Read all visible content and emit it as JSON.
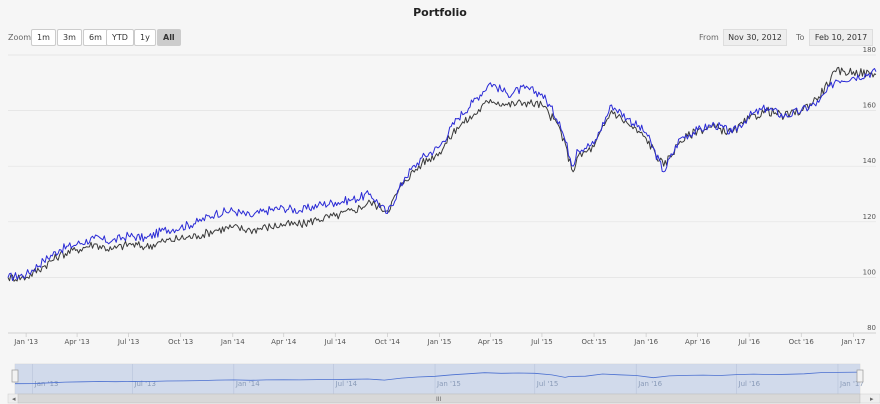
{
  "chart_data": {
    "type": "line",
    "title": "Portfolio",
    "ylim": [
      80,
      180
    ],
    "y_ticks": [
      80,
      100,
      120,
      140,
      160,
      180
    ],
    "x_range": [
      "2012-11-30",
      "2017-02-10"
    ],
    "x_tick_labels": [
      "Jan '13",
      "Apr '13",
      "Jul '13",
      "Oct '13",
      "Jan '14",
      "Apr '14",
      "Jul '14",
      "Oct '14",
      "Jan '15",
      "Apr '15",
      "Jul '15",
      "Oct '15",
      "Jan '16",
      "Apr '16",
      "Jul '16",
      "Oct '16",
      "Jan '17"
    ],
    "x_tick_dates": [
      "2013-01-01",
      "2013-04-01",
      "2013-07-01",
      "2013-10-01",
      "2014-01-01",
      "2014-04-01",
      "2014-07-01",
      "2014-10-01",
      "2015-01-01",
      "2015-04-01",
      "2015-07-01",
      "2015-10-01",
      "2016-01-01",
      "2016-04-01",
      "2016-07-01",
      "2016-10-01",
      "2017-01-01"
    ],
    "navigator_labels": [
      "Jan '13",
      "Jul '13",
      "Jan '14",
      "Jul '14",
      "Jan '15",
      "Jul '15",
      "Jan '16",
      "Jul '16",
      "Jan '17"
    ],
    "navigator_dates": [
      "2013-01-01",
      "2013-07-01",
      "2014-01-01",
      "2014-07-01",
      "2015-01-01",
      "2015-07-01",
      "2016-01-01",
      "2016-07-01",
      "2017-01-01"
    ],
    "series": [
      {
        "color": "#2b2bd6",
        "points": [
          [
            "2012-11-30",
            100
          ],
          [
            "2013-01-01",
            101
          ],
          [
            "2013-02-01",
            106
          ],
          [
            "2013-03-01",
            110
          ],
          [
            "2013-04-01",
            112
          ],
          [
            "2013-05-01",
            114
          ],
          [
            "2013-06-01",
            113
          ],
          [
            "2013-07-01",
            115
          ],
          [
            "2013-08-01",
            114
          ],
          [
            "2013-09-01",
            117
          ],
          [
            "2013-10-01",
            118
          ],
          [
            "2013-11-01",
            120
          ],
          [
            "2013-12-01",
            123
          ],
          [
            "2014-01-01",
            124
          ],
          [
            "2014-02-01",
            122
          ],
          [
            "2014-03-01",
            124
          ],
          [
            "2014-04-01",
            125
          ],
          [
            "2014-05-01",
            124
          ],
          [
            "2014-06-01",
            126
          ],
          [
            "2014-07-01",
            127
          ],
          [
            "2014-08-01",
            128
          ],
          [
            "2014-09-01",
            130
          ],
          [
            "2014-10-01",
            123
          ],
          [
            "2014-11-01",
            136
          ],
          [
            "2014-12-01",
            143
          ],
          [
            "2015-01-01",
            147
          ],
          [
            "2015-02-01",
            157
          ],
          [
            "2015-03-01",
            163
          ],
          [
            "2015-04-01",
            170
          ],
          [
            "2015-05-01",
            166
          ],
          [
            "2015-06-01",
            168
          ],
          [
            "2015-07-01",
            166
          ],
          [
            "2015-08-01",
            156
          ],
          [
            "2015-08-25",
            140
          ],
          [
            "2015-09-01",
            146
          ],
          [
            "2015-10-01",
            148
          ],
          [
            "2015-11-01",
            162
          ],
          [
            "2015-12-01",
            157
          ],
          [
            "2016-01-01",
            152
          ],
          [
            "2016-02-01",
            138
          ],
          [
            "2016-03-01",
            150
          ],
          [
            "2016-04-01",
            153
          ],
          [
            "2016-05-01",
            155
          ],
          [
            "2016-06-01",
            152
          ],
          [
            "2016-07-01",
            158
          ],
          [
            "2016-08-01",
            161
          ],
          [
            "2016-09-01",
            158
          ],
          [
            "2016-10-01",
            160
          ],
          [
            "2016-11-01",
            163
          ],
          [
            "2016-12-01",
            171
          ],
          [
            "2017-01-01",
            172
          ],
          [
            "2017-02-10",
            174
          ]
        ]
      },
      {
        "color": "#3a3a3a",
        "points": [
          [
            "2012-11-30",
            100
          ],
          [
            "2013-01-01",
            100
          ],
          [
            "2013-02-01",
            104
          ],
          [
            "2013-03-01",
            108
          ],
          [
            "2013-04-01",
            110
          ],
          [
            "2013-05-01",
            112
          ],
          [
            "2013-06-01",
            110
          ],
          [
            "2013-07-01",
            112
          ],
          [
            "2013-08-01",
            111
          ],
          [
            "2013-09-01",
            113
          ],
          [
            "2013-10-01",
            114
          ],
          [
            "2013-11-01",
            115
          ],
          [
            "2013-12-01",
            117
          ],
          [
            "2014-01-01",
            118
          ],
          [
            "2014-02-01",
            117
          ],
          [
            "2014-03-01",
            118
          ],
          [
            "2014-04-01",
            119
          ],
          [
            "2014-05-01",
            119
          ],
          [
            "2014-06-01",
            121
          ],
          [
            "2014-07-01",
            122
          ],
          [
            "2014-08-01",
            124
          ],
          [
            "2014-09-01",
            127
          ],
          [
            "2014-10-01",
            124
          ],
          [
            "2014-11-01",
            135
          ],
          [
            "2014-12-01",
            141
          ],
          [
            "2015-01-01",
            145
          ],
          [
            "2015-02-01",
            154
          ],
          [
            "2015-03-01",
            158
          ],
          [
            "2015-04-01",
            164
          ],
          [
            "2015-05-01",
            162
          ],
          [
            "2015-06-01",
            163
          ],
          [
            "2015-07-01",
            162
          ],
          [
            "2015-08-01",
            154
          ],
          [
            "2015-08-25",
            138
          ],
          [
            "2015-09-01",
            143
          ],
          [
            "2015-10-01",
            147
          ],
          [
            "2015-11-01",
            160
          ],
          [
            "2015-12-01",
            155
          ],
          [
            "2016-01-01",
            150
          ],
          [
            "2016-02-01",
            140
          ],
          [
            "2016-03-01",
            149
          ],
          [
            "2016-04-01",
            153
          ],
          [
            "2016-05-01",
            154
          ],
          [
            "2016-06-01",
            152
          ],
          [
            "2016-07-01",
            157
          ],
          [
            "2016-08-01",
            160
          ],
          [
            "2016-09-01",
            158
          ],
          [
            "2016-10-01",
            160
          ],
          [
            "2016-11-01",
            165
          ],
          [
            "2016-12-01",
            174
          ],
          [
            "2017-01-01",
            174
          ],
          [
            "2017-02-10",
            173
          ]
        ]
      }
    ]
  },
  "toolbar": {
    "zoom_label": "Zoom",
    "zoom_buttons": [
      "1m",
      "3m",
      "6m",
      "YTD",
      "1y",
      "All"
    ],
    "active_zoom": "All",
    "from_label": "From",
    "from_value": "Nov 30, 2012",
    "to_label": "To",
    "to_value": "Feb 10, 2017"
  },
  "scrollbar": {
    "grip_glyph": "III",
    "left_arrow": "◂",
    "right_arrow": "▸"
  }
}
